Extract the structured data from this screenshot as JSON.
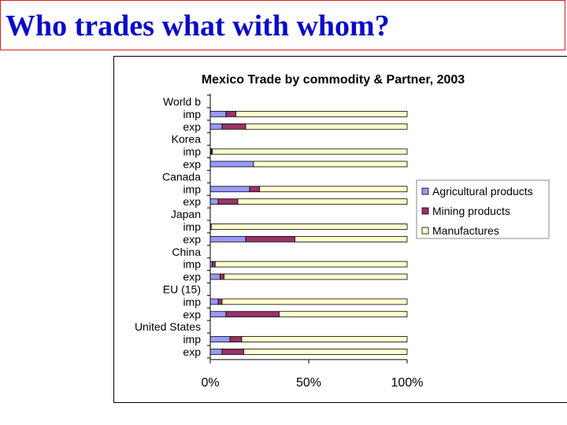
{
  "page": {
    "title": "Who trades what with whom?"
  },
  "chart_data": {
    "type": "bar",
    "orientation": "horizontal",
    "stacked": "percent",
    "title": "Mexico Trade by commodity & Partner, 2003",
    "xlabel": "",
    "ylabel": "",
    "xlim": [
      0,
      100
    ],
    "x_ticks": [
      "0%",
      "50%",
      "100%"
    ],
    "grid": false,
    "legend_position": "right",
    "rows": [
      {
        "label": "World  b",
        "bar": false
      },
      {
        "label": "imp",
        "bar": true,
        "values": [
          8,
          5,
          87
        ]
      },
      {
        "label": "exp",
        "bar": true,
        "values": [
          6,
          12,
          82
        ]
      },
      {
        "label": "Korea",
        "bar": false
      },
      {
        "label": "imp",
        "bar": true,
        "values": [
          0.5,
          0.5,
          99
        ]
      },
      {
        "label": "exp",
        "bar": true,
        "values": [
          22,
          0,
          78
        ]
      },
      {
        "label": "Canada",
        "bar": false
      },
      {
        "label": "imp",
        "bar": true,
        "values": [
          20,
          5,
          75
        ]
      },
      {
        "label": "exp",
        "bar": true,
        "values": [
          4,
          10,
          86
        ]
      },
      {
        "label": "Japan",
        "bar": false
      },
      {
        "label": "imp",
        "bar": true,
        "values": [
          0.5,
          0,
          99.5
        ]
      },
      {
        "label": "exp",
        "bar": true,
        "values": [
          18,
          25,
          57
        ]
      },
      {
        "label": "China",
        "bar": false
      },
      {
        "label": "imp",
        "bar": true,
        "values": [
          1,
          1.5,
          97.5
        ]
      },
      {
        "label": "exp",
        "bar": true,
        "values": [
          5,
          2,
          93
        ]
      },
      {
        "label": "EU (15)",
        "bar": false
      },
      {
        "label": "imp",
        "bar": true,
        "values": [
          4,
          2,
          94
        ]
      },
      {
        "label": "exp",
        "bar": true,
        "values": [
          8,
          27,
          65
        ]
      },
      {
        "label": "United States",
        "bar": false
      },
      {
        "label": "imp",
        "bar": true,
        "values": [
          10,
          6,
          84
        ]
      },
      {
        "label": "exp",
        "bar": true,
        "values": [
          6,
          11,
          83
        ]
      }
    ],
    "series": [
      {
        "name": "Agricultural products",
        "color": "#9999ff"
      },
      {
        "name": "Mining products",
        "color": "#993366"
      },
      {
        "name": "Manufactures",
        "color": "#ffffcc"
      }
    ]
  }
}
